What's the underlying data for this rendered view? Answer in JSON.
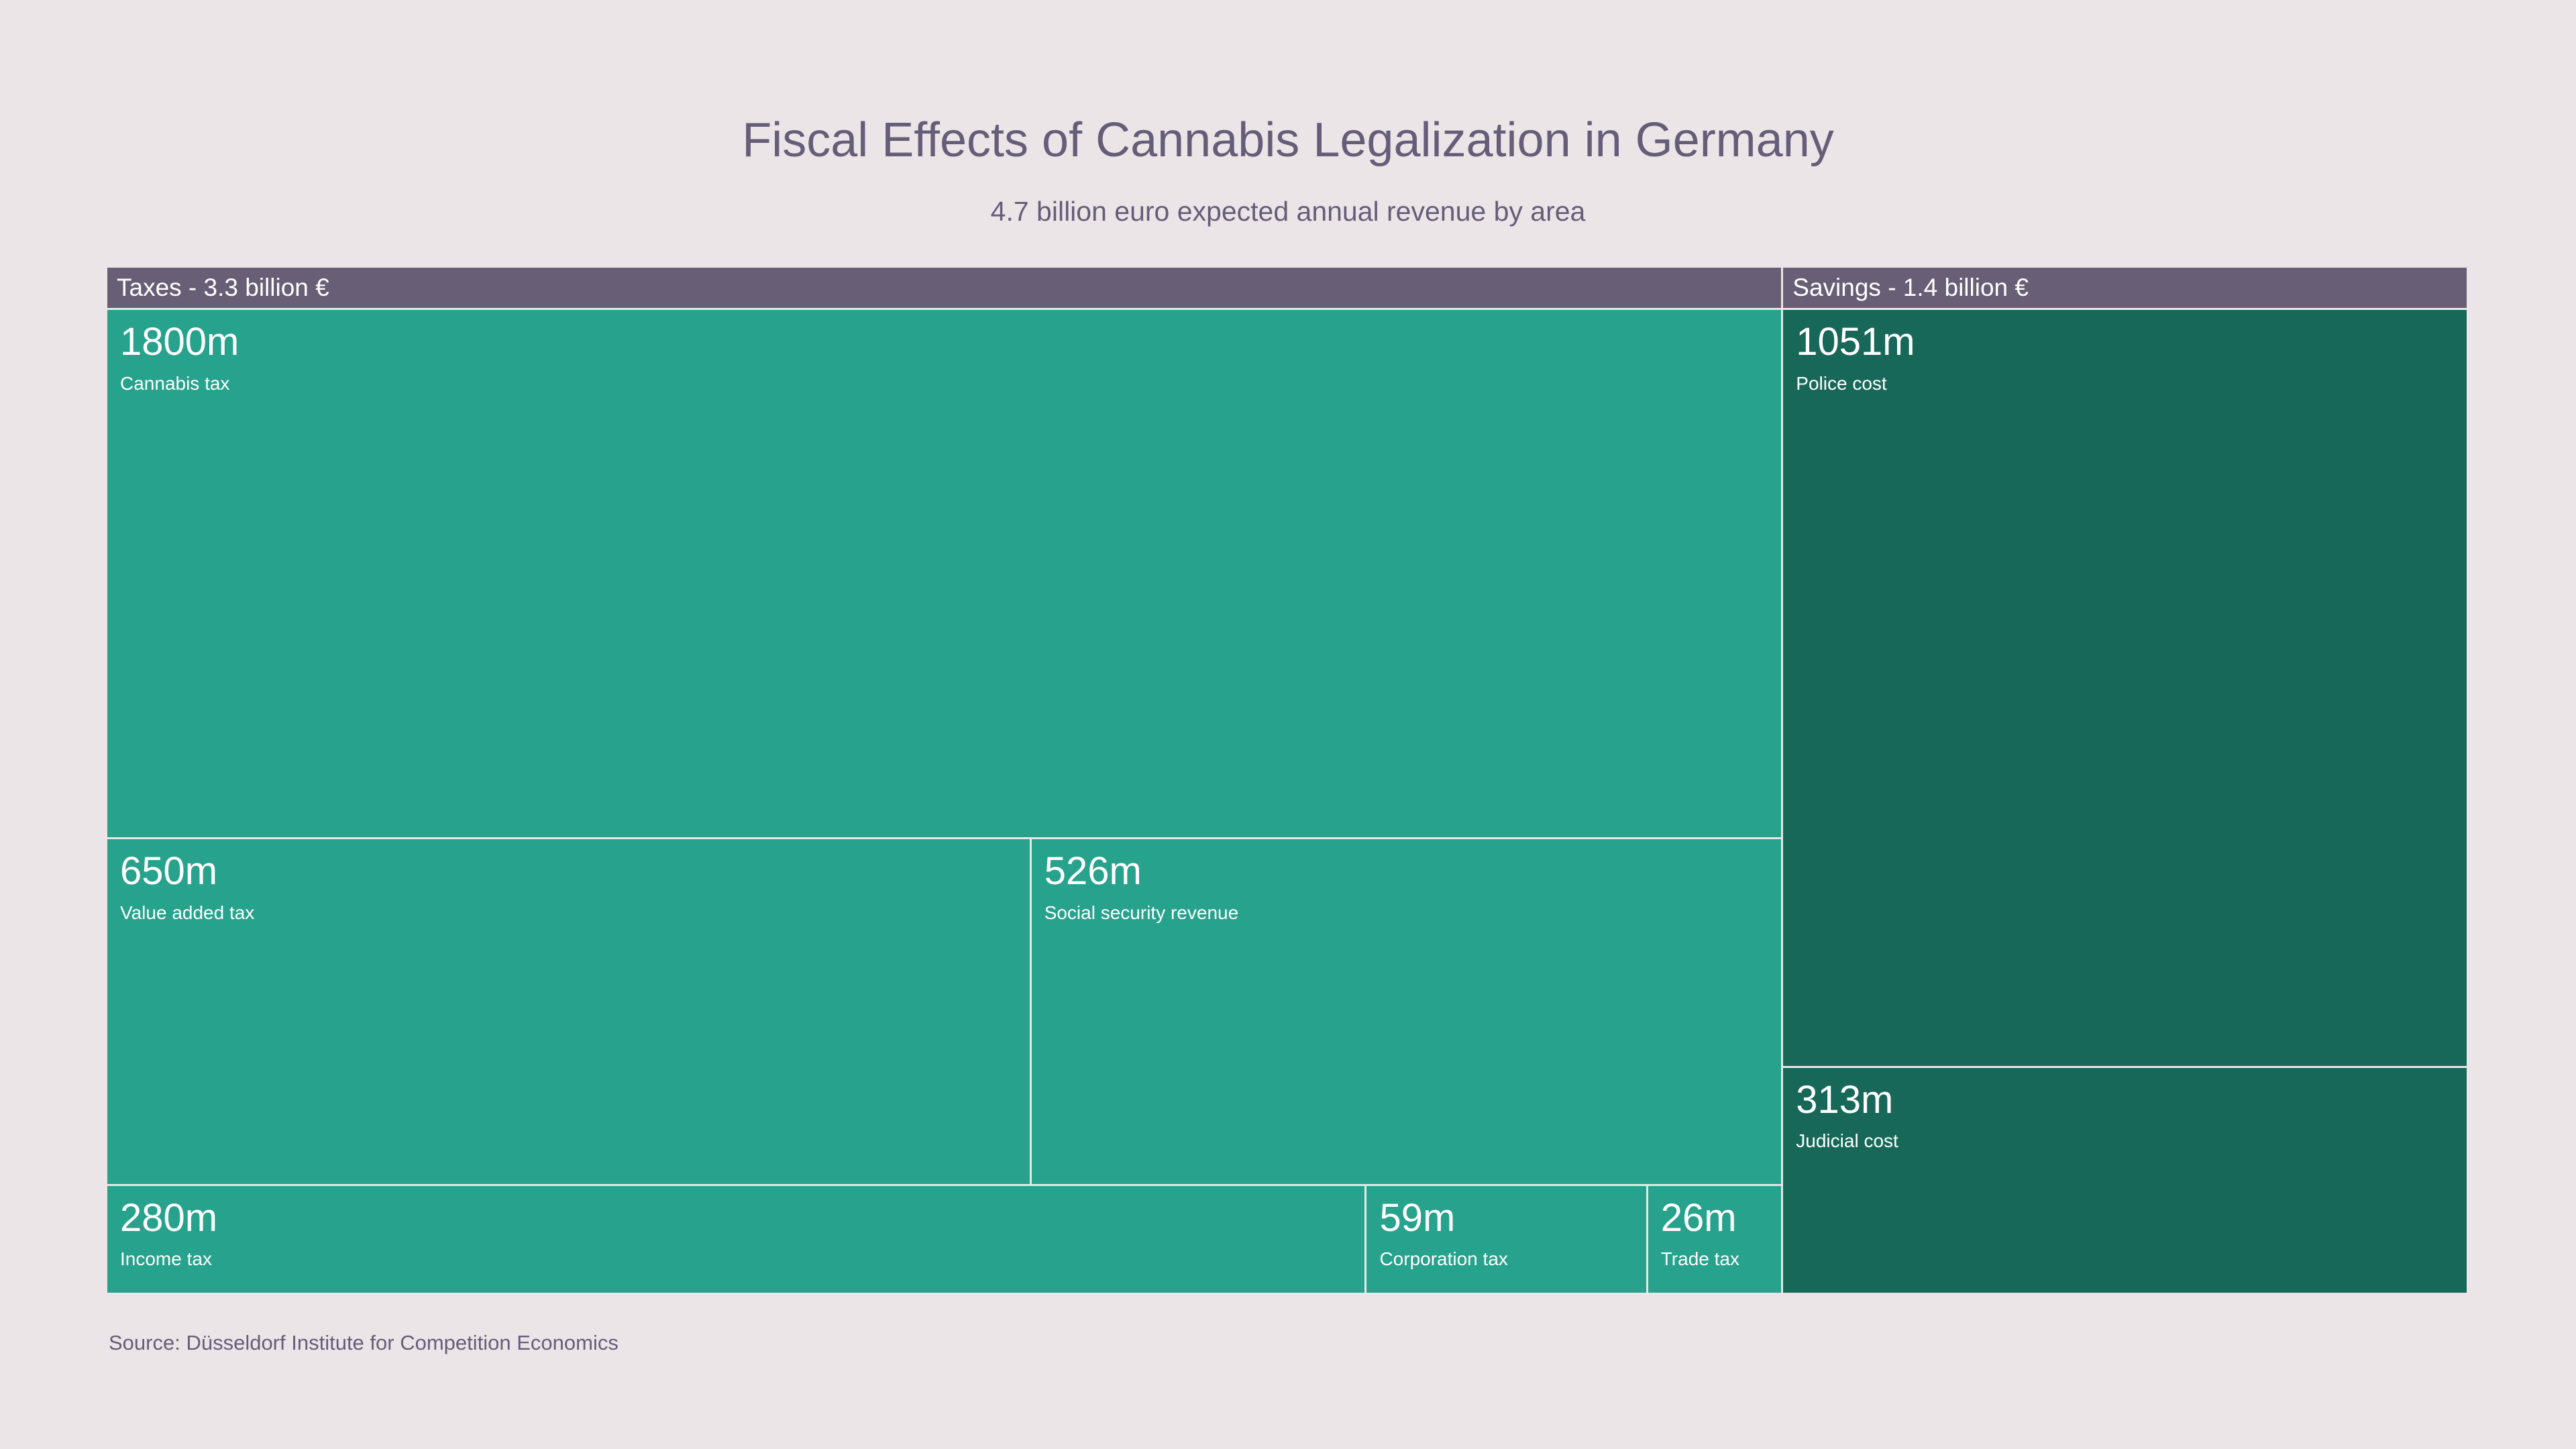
{
  "title": "Fiscal Effects of Cannabis Legalization in Germany",
  "subtitle": "4.7 billion euro expected annual revenue by area",
  "source": "Source: Düsseldorf Institute for Competition Economics",
  "colors": {
    "background": "#EBE5E7",
    "header_bg": "#685F76",
    "taxes_cell": "#27A28C",
    "savings_cell": "#176859",
    "cell_text": "#FFFFFF",
    "muted_text": "#665D79",
    "gap": "#FFFFFF"
  },
  "chart_data": {
    "type": "treemap",
    "title": "Fiscal Effects of Cannabis Legalization in Germany",
    "subtitle": "4.7 billion euro expected annual revenue by area",
    "unit": "million euro",
    "grand_total_label": "4.7 billion euro",
    "legend_position": "none",
    "groups": [
      {
        "name": "Taxes",
        "header": "Taxes - 3.3 billion €",
        "total": 3341,
        "color": "#27A28C",
        "items": [
          {
            "label": "Cannabis tax",
            "value": 1800,
            "value_label": "1800m"
          },
          {
            "label": "Value added tax",
            "value": 650,
            "value_label": "650m"
          },
          {
            "label": "Social security revenue",
            "value": 526,
            "value_label": "526m"
          },
          {
            "label": "Income tax",
            "value": 280,
            "value_label": "280m"
          },
          {
            "label": "Corporation tax",
            "value": 59,
            "value_label": "59m"
          },
          {
            "label": "Trade tax",
            "value": 26,
            "value_label": "26m"
          }
        ],
        "rows": [
          [
            0
          ],
          [
            1,
            2
          ],
          [
            3,
            4,
            5
          ]
        ]
      },
      {
        "name": "Savings",
        "header": "Savings - 1.4 billion €",
        "total": 1364,
        "color": "#176859",
        "items": [
          {
            "label": "Police cost",
            "value": 1051,
            "value_label": "1051m"
          },
          {
            "label": "Judicial cost",
            "value": 313,
            "value_label": "313m"
          }
        ],
        "rows": [
          [
            0
          ],
          [
            1
          ]
        ]
      }
    ]
  }
}
